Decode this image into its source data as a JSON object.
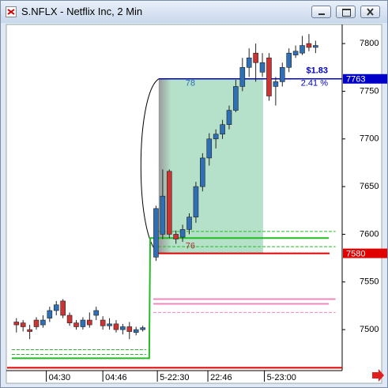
{
  "chart_data": {
    "type": "candlestick",
    "title": "S.NFLX - Netflix Inc, 2 Min",
    "x": [
      0,
      1,
      2,
      3,
      4,
      5,
      6,
      7,
      8,
      9,
      10,
      11,
      12,
      13,
      14,
      15,
      16,
      17,
      18,
      19,
      21,
      22,
      23,
      24,
      25,
      26,
      27,
      28,
      29,
      30,
      31,
      32,
      33,
      34,
      35,
      36,
      37,
      38,
      39,
      40,
      41,
      42,
      43,
      44,
      45
    ],
    "open": [
      7508,
      7507,
      7500,
      7510,
      7505,
      7512,
      7520,
      7530,
      7515,
      7507,
      7503,
      7510,
      7515,
      7510,
      7504,
      7506,
      7500,
      7503,
      7497,
      7500,
      7576,
      7600,
      7666,
      7600,
      7597,
      7605,
      7618,
      7650,
      7680,
      7700,
      7705,
      7715,
      7730,
      7755,
      7775,
      7790,
      7770,
      7785,
      7755,
      7760,
      7775,
      7788,
      7790,
      7800,
      7796
    ],
    "high": [
      7512,
      7510,
      7505,
      7513,
      7515,
      7524,
      7530,
      7532,
      7518,
      7510,
      7513,
      7518,
      7524,
      7514,
      7512,
      7510,
      7506,
      7508,
      7503,
      7504,
      7630,
      7668,
      7668,
      7604,
      7610,
      7622,
      7655,
      7685,
      7706,
      7710,
      7720,
      7735,
      7762,
      7785,
      7795,
      7800,
      7790,
      7790,
      7765,
      7780,
      7795,
      7798,
      7808,
      7810,
      7803
    ],
    "low": [
      7497,
      7498,
      7490,
      7500,
      7502,
      7508,
      7515,
      7512,
      7504,
      7500,
      7500,
      7502,
      7510,
      7500,
      7500,
      7497,
      7495,
      7490,
      7494,
      7498,
      7572,
      7595,
      7596,
      7590,
      7592,
      7600,
      7612,
      7645,
      7672,
      7690,
      7700,
      7710,
      7728,
      7750,
      7765,
      7760,
      7765,
      7740,
      7735,
      7755,
      7770,
      7785,
      7788,
      7792,
      7790
    ],
    "close": [
      7505,
      7503,
      7498,
      7503,
      7510,
      7520,
      7526,
      7515,
      7507,
      7503,
      7510,
      7505,
      7520,
      7504,
      7506,
      7500,
      7503,
      7498,
      7500,
      7502,
      7627,
      7640,
      7600,
      7595,
      7605,
      7618,
      7650,
      7680,
      7700,
      7705,
      7715,
      7730,
      7755,
      7775,
      7785,
      7780,
      7780,
      7745,
      7760,
      7775,
      7790,
      7792,
      7798,
      7796,
      7798
    ],
    "up_color": "#2f6fb5",
    "down_color": "#cc3333",
    "xlim": [
      -1.4,
      49
    ],
    "ylim": [
      7457,
      7820
    ],
    "xticks": [
      {
        "value": 4.5,
        "label": "04:30"
      },
      {
        "value": 13,
        "label": "04:46"
      },
      {
        "value": 21.2,
        "label": "5-22:30"
      },
      {
        "value": 28.8,
        "label": "22:46"
      },
      {
        "value": 37.3,
        "label": "5-23:00"
      }
    ],
    "yticks": [
      7500,
      7550,
      7600,
      7650,
      7700,
      7750,
      7800
    ],
    "markers": [
      {
        "value": 7763,
        "color": "#0000c8"
      },
      {
        "value": 7580,
        "color": "#e00000"
      }
    ],
    "box_x": [
      21.4,
      37.1
    ],
    "box_labels": [
      "78",
      "76"
    ],
    "change": "$1.83",
    "change_pct": "2.41 %",
    "levels": [
      {
        "value": 7603,
        "color": "#22bb22",
        "dash": true,
        "x": [
          20.6,
          48
        ]
      },
      {
        "value": 7596,
        "color": "#22bb22",
        "dash": false,
        "x": [
          20.6,
          47
        ]
      },
      {
        "value": 7587,
        "color": "#22bb22",
        "dash": true,
        "x": [
          20.6,
          48
        ]
      },
      {
        "value": 7532,
        "color": "#ee88bb",
        "dash": false,
        "x": [
          20.6,
          48
        ]
      },
      {
        "value": 7527,
        "color": "#ee88bb",
        "dash": false,
        "x": [
          20.6,
          47
        ]
      },
      {
        "value": 7518,
        "color": "#ee88bb",
        "dash": true,
        "x": [
          20.6,
          48
        ]
      },
      {
        "value": 7479,
        "color": "#22bb22",
        "dash": true,
        "x": [
          -0.7,
          19.5
        ]
      },
      {
        "value": 7474,
        "color": "#22bb22",
        "dash": true,
        "x": [
          -0.7,
          19.5
        ]
      },
      {
        "value": 7470,
        "color": "#22bb22",
        "dash": false,
        "x": [
          -0.7,
          19.5
        ]
      },
      {
        "value": 7460,
        "color": "#dd0000",
        "dash": false,
        "x": [
          -1.4,
          49
        ]
      }
    ]
  }
}
